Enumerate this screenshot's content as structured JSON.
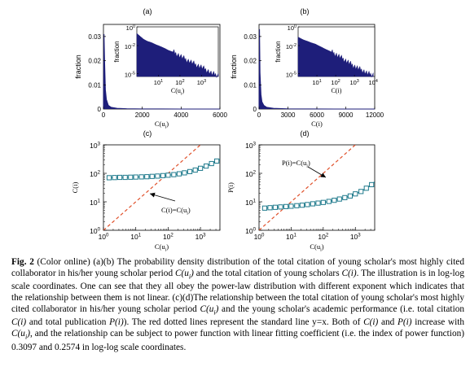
{
  "chart_data": [
    {
      "panel": "(a)",
      "type": "area",
      "xlabel": "C(u_i)",
      "ylabel": "fraction",
      "xlim": [
        0,
        6000
      ],
      "ylim": [
        0,
        0.035
      ],
      "xticks": [
        0,
        2000,
        4000,
        6000
      ],
      "yticks": [
        0.01,
        0.02,
        0.03
      ],
      "x": [
        0,
        30,
        60,
        100,
        150,
        250,
        400,
        700,
        1200,
        2000,
        3000,
        4000,
        5000,
        6000
      ],
      "y": [
        0.0,
        0.031,
        0.02,
        0.008,
        0.004,
        0.0015,
        0.0007,
        0.0003,
        0.00012,
        5e-05,
        2e-05,
        1e-05,
        5e-06,
        0.0
      ],
      "inset": {
        "type": "bar",
        "xlabel": "C(u_i)",
        "ylabel": "fraction",
        "xscale": "log",
        "yscale": "log",
        "xlim": [
          1,
          6000
        ],
        "ylim": [
          5e-06,
          1
        ],
        "x": [
          1,
          2,
          3,
          5,
          8,
          10,
          20,
          30,
          50,
          100,
          200,
          300,
          500,
          1000,
          2000,
          3000,
          6000
        ],
        "y": [
          0.2,
          0.05,
          0.03,
          0.02,
          0.012,
          0.01,
          0.005,
          0.003,
          0.002,
          0.0008,
          0.0003,
          0.0002,
          0.0001,
          5e-05,
          2e-05,
          1e-05,
          7e-06
        ]
      }
    },
    {
      "panel": "(b)",
      "type": "area",
      "xlabel": "C(i)",
      "ylabel": "fraction",
      "xlim": [
        0,
        12000
      ],
      "ylim": [
        0,
        0.035
      ],
      "xticks": [
        0,
        3000,
        6000,
        9000,
        12000
      ],
      "yticks": [
        0.01,
        0.02,
        0.03
      ],
      "x": [
        0,
        50,
        100,
        200,
        300,
        500,
        800,
        1500,
        3000,
        5000,
        8000,
        12000
      ],
      "y": [
        0.0,
        0.033,
        0.015,
        0.006,
        0.003,
        0.0015,
        0.0007,
        0.0003,
        0.0001,
        4e-05,
        1e-05,
        0.0
      ],
      "inset": {
        "type": "bar",
        "xlabel": "C(i)",
        "ylabel": "fraction",
        "xscale": "log",
        "yscale": "log",
        "xlim": [
          1,
          12000
        ],
        "ylim": [
          5e-06,
          1
        ],
        "x": [
          1,
          2,
          3,
          5,
          8,
          10,
          20,
          30,
          50,
          100,
          200,
          300,
          500,
          1000,
          2000,
          3000,
          5000,
          10000
        ],
        "y": [
          0.08,
          0.04,
          0.03,
          0.02,
          0.015,
          0.012,
          0.006,
          0.004,
          0.0025,
          0.0012,
          0.0005,
          0.0003,
          0.00015,
          6e-05,
          3e-05,
          2e-05,
          1e-05,
          8e-06
        ]
      }
    },
    {
      "panel": "(c)",
      "type": "line",
      "xlabel": "C(u_i)",
      "ylabel": "C(i)",
      "xscale": "log",
      "yscale": "log",
      "xlim": [
        1,
        4000
      ],
      "ylim": [
        1,
        1000
      ],
      "annotation": "C(i)=C(u_i)",
      "series": [
        {
          "marker": "square",
          "color": "#1f7a8c",
          "x": [
            1.5,
            2.2,
            3.2,
            4.7,
            6.9,
            10,
            15,
            22,
            32,
            47,
            69,
            100,
            150,
            220,
            320,
            470,
            690,
            1000,
            1500,
            2200,
            3200,
            4000
          ],
          "y": [
            70,
            71,
            72,
            72,
            73,
            74,
            75,
            76,
            78,
            80,
            83,
            86,
            90,
            96,
            104,
            115,
            130,
            150,
            180,
            220,
            270,
            300
          ]
        },
        {
          "style": "dashed",
          "color": "#e0502a",
          "x": [
            1,
            4000
          ],
          "y": [
            1,
            4000
          ]
        }
      ]
    },
    {
      "panel": "(d)",
      "type": "line",
      "xlabel": "C(u_i)",
      "ylabel": "P(i)",
      "xscale": "log",
      "yscale": "log",
      "xlim": [
        1,
        4000
      ],
      "ylim": [
        1,
        1000
      ],
      "annotation": "P(i)=C(u_i)",
      "series": [
        {
          "marker": "square",
          "color": "#1f7a8c",
          "x": [
            1.5,
            2.2,
            3.2,
            4.7,
            6.9,
            10,
            15,
            22,
            32,
            47,
            69,
            100,
            150,
            220,
            320,
            470,
            690,
            1000,
            1500,
            2200,
            3200,
            4000
          ],
          "y": [
            6,
            6.2,
            6.4,
            6.6,
            6.8,
            7,
            7.3,
            7.6,
            8,
            8.5,
            9,
            9.5,
            10.3,
            11.3,
            12.5,
            14,
            16,
            19,
            23,
            30,
            40,
            50
          ]
        },
        {
          "style": "dashed",
          "color": "#e0502a",
          "x": [
            1,
            4000
          ],
          "y": [
            1,
            4000
          ]
        }
      ]
    }
  ],
  "caption": {
    "label": "Fig. 2",
    "text": "(Color online) (a)(b) The probability density distribution of the total citation of young scholar's most highly cited collaborator in his/her young scholar period C(u_i) and the total citation of young scholars C(i). The illustration is in log-log scale coordinates. One can see that they all obey the power-law distribution with different exponent which indicates that the relationship between them is not linear. (c)(d)The relationship between the total citation of young scholar's most highly cited collaborator in his/her young scholar period C(u_i) and the young scholar's academic performance (i.e. total citation C(i) and total publication P(i)). The red dotted lines represent the standard line y=x. Both of C(i) and P(i) increase with C(u_i), and the relationship can be subject to power function with linear fitting coefficient (i.e. the index of power function) 0.3097 and 0.2574 in log-log scale coordinates."
  }
}
